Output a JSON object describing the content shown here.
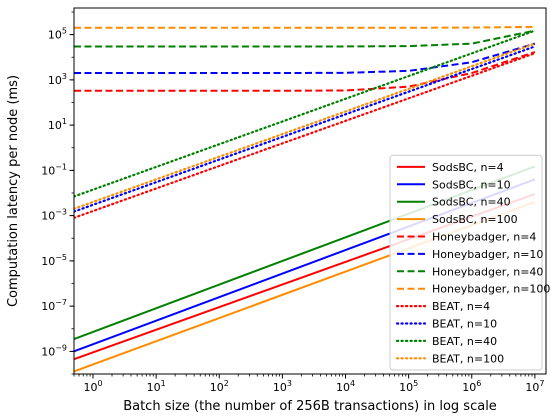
{
  "chart_data": {
    "type": "line",
    "xlabel": "Batch size (the number of 256B transactions) in log scale",
    "ylabel": "Computation latency per node (ms)",
    "xscale": "log",
    "yscale": "log",
    "xlim": [
      0.5,
      15000000
    ],
    "ylim": [
      1e-10,
      1500000
    ],
    "grid": false,
    "legend_position": "bottom-right",
    "x_ticks": [
      {
        "value": 1,
        "base": "10",
        "exp": "0"
      },
      {
        "value": 10,
        "base": "10",
        "exp": "1"
      },
      {
        "value": 100,
        "base": "10",
        "exp": "2"
      },
      {
        "value": 1000,
        "base": "10",
        "exp": "3"
      },
      {
        "value": 10000,
        "base": "10",
        "exp": "4"
      },
      {
        "value": 100000,
        "base": "10",
        "exp": "5"
      },
      {
        "value": 1000000,
        "base": "10",
        "exp": "6"
      },
      {
        "value": 10000000,
        "base": "10",
        "exp": "7"
      }
    ],
    "y_ticks": [
      {
        "value": 1e-09,
        "base": "10",
        "exp": "−9"
      },
      {
        "value": 1e-07,
        "base": "10",
        "exp": "−7"
      },
      {
        "value": 1e-05,
        "base": "10",
        "exp": "−5"
      },
      {
        "value": 0.001,
        "base": "10",
        "exp": "−3"
      },
      {
        "value": 0.1,
        "base": "10",
        "exp": "−1"
      },
      {
        "value": 10,
        "base": "10",
        "exp": "1"
      },
      {
        "value": 1000,
        "base": "10",
        "exp": "3"
      },
      {
        "value": 100000,
        "base": "10",
        "exp": "5"
      }
    ],
    "series": [
      {
        "name": "SodsBC, n=4",
        "color": "#ff0000",
        "style": "solid",
        "x": [
          0.5,
          10000000
        ],
        "y": [
          4.5e-10,
          0.009
        ]
      },
      {
        "name": "SodsBC, n=10",
        "color": "#0000ff",
        "style": "solid",
        "x": [
          0.5,
          10000000
        ],
        "y": [
          1e-09,
          0.04
        ]
      },
      {
        "name": "SodsBC, n=40",
        "color": "#008000",
        "style": "solid",
        "x": [
          0.5,
          10000000
        ],
        "y": [
          3.5e-09,
          0.15
        ]
      },
      {
        "name": "SodsBC, n=100",
        "color": "#ff8c00",
        "style": "solid",
        "x": [
          0.5,
          10000000
        ],
        "y": [
          1.3e-10,
          0.004
        ]
      },
      {
        "name": "Honeybadger, n=4",
        "color": "#ff0000",
        "style": "dashed",
        "x": [
          0.5,
          1,
          10,
          100,
          1000,
          10000,
          100000,
          1000000,
          10000000
        ],
        "y": [
          330,
          330,
          330,
          330,
          330,
          340,
          500,
          2000,
          17000
        ]
      },
      {
        "name": "Honeybadger, n=10",
        "color": "#0000ff",
        "style": "dashed",
        "x": [
          0.5,
          1,
          10,
          100,
          1000,
          10000,
          100000,
          1000000,
          10000000
        ],
        "y": [
          2000,
          2000,
          2000,
          2000,
          2000,
          2050,
          2500,
          6000,
          40000
        ]
      },
      {
        "name": "Honeybadger, n=40",
        "color": "#008000",
        "style": "dashed",
        "x": [
          0.5,
          1,
          10,
          100,
          1000,
          10000,
          100000,
          1000000,
          10000000
        ],
        "y": [
          30000,
          30000,
          30000,
          30000,
          30000,
          30000,
          31000,
          40000,
          150000
        ]
      },
      {
        "name": "Honeybadger, n=100",
        "color": "#ff8c00",
        "style": "dashed",
        "x": [
          0.5,
          1,
          10,
          100,
          1000,
          10000,
          100000,
          1000000,
          10000000
        ],
        "y": [
          200000,
          200000,
          200000,
          200000,
          200000,
          200000,
          200500,
          205000,
          220000
        ]
      },
      {
        "name": "BEAT, n=4",
        "color": "#ff0000",
        "style": "dotted",
        "x": [
          0.5,
          10000000
        ],
        "y": [
          0.0008,
          15000
        ]
      },
      {
        "name": "BEAT, n=10",
        "color": "#0000ff",
        "style": "dotted",
        "x": [
          0.5,
          10000000
        ],
        "y": [
          0.0015,
          30000
        ]
      },
      {
        "name": "BEAT, n=40",
        "color": "#008000",
        "style": "dotted",
        "x": [
          0.5,
          10000000
        ],
        "y": [
          0.007,
          150000
        ]
      },
      {
        "name": "BEAT, n=100",
        "color": "#ff8c00",
        "style": "dotted",
        "x": [
          0.5,
          10000000
        ],
        "y": [
          0.002,
          40000
        ]
      }
    ]
  }
}
